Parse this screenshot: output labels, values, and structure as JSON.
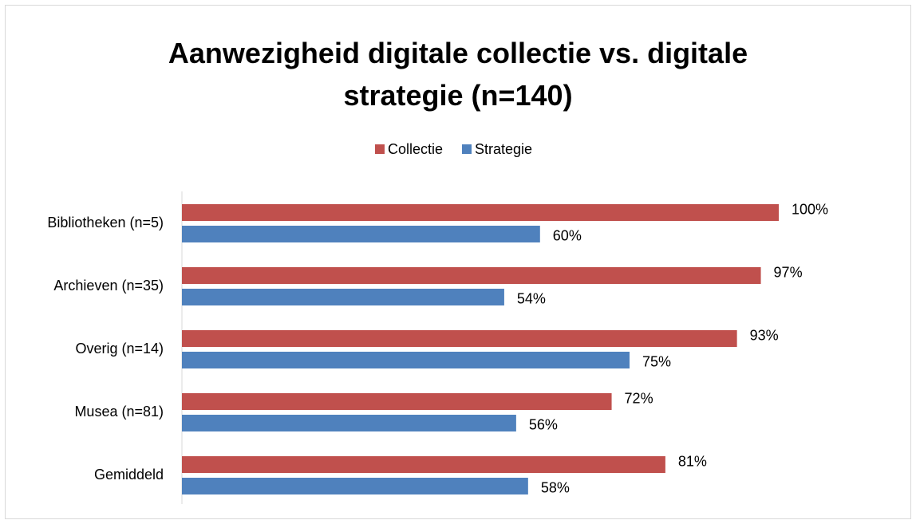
{
  "chart_data": {
    "type": "barh",
    "title": "Aanwezigheid digitale collectie vs. digitale strategie (n=140)",
    "categories": [
      "Bibliotheken (n=5)",
      "Archieven (n=35)",
      "Overig (n=14)",
      "Musea (n=81)",
      "Gemiddeld"
    ],
    "series": [
      {
        "name": "Collectie",
        "color": "#c0504d",
        "values": [
          100,
          97,
          93,
          72,
          81
        ],
        "value_labels": [
          "100%",
          "97%",
          "93%",
          "72%",
          "81%"
        ]
      },
      {
        "name": "Strategie",
        "color": "#4f81bd",
        "values": [
          60,
          54,
          75,
          56,
          58
        ],
        "value_labels": [
          "60%",
          "54%",
          "75%",
          "56%",
          "58%"
        ]
      }
    ],
    "xlim": [
      0,
      100
    ],
    "legend": "top"
  }
}
